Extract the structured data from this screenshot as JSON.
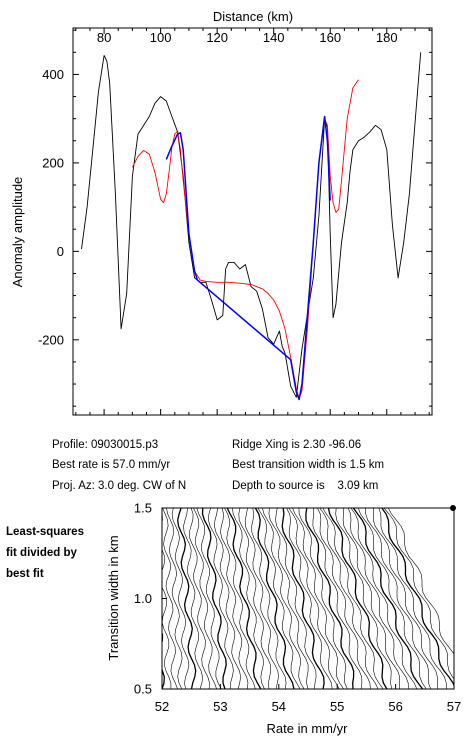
{
  "chart_data": [
    {
      "type": "line",
      "xlabel": "Distance (km)",
      "ylabel": "Anomaly amplitude",
      "x_ticks": [
        80,
        100,
        120,
        140,
        160,
        180
      ],
      "y_ticks": [
        400,
        200,
        0,
        -200
      ],
      "xlim": [
        69,
        196
      ],
      "ylim": [
        -370,
        505
      ],
      "series": [
        {
          "color": "#000000",
          "x": [
            72,
            74,
            76,
            78,
            80,
            81,
            82,
            84,
            85,
            86,
            88,
            90,
            92,
            94,
            96,
            98,
            100,
            102,
            104,
            106,
            108,
            110,
            112,
            114,
            116,
            118,
            120,
            122,
            123,
            124,
            126,
            128,
            130,
            132,
            134,
            136,
            138,
            140,
            142,
            143,
            144,
            146,
            148,
            150,
            152,
            154,
            156,
            158,
            159,
            160,
            161,
            162,
            164,
            166,
            167,
            168,
            170,
            172,
            174,
            176,
            178,
            180,
            182,
            184,
            186,
            188,
            190,
            192
          ],
          "y": [
            5,
            100,
            230,
            360,
            443,
            430,
            380,
            130,
            -20,
            -175,
            -95,
            170,
            265,
            285,
            305,
            335,
            350,
            340,
            305,
            270,
            170,
            20,
            -60,
            -70,
            -70,
            -110,
            -155,
            -145,
            -40,
            -25,
            -25,
            -40,
            -30,
            -80,
            -90,
            -130,
            -195,
            -210,
            -180,
            -215,
            -230,
            -305,
            -330,
            -220,
            -140,
            -60,
            80,
            300,
            280,
            40,
            -150,
            -120,
            20,
            110,
            180,
            230,
            250,
            258,
            270,
            285,
            275,
            230,
            60,
            -60,
            20,
            130,
            290,
            450
          ]
        },
        {
          "color": "#ff0000",
          "x": [
            90,
            92,
            94,
            96,
            98,
            100,
            101,
            102,
            103,
            104,
            105,
            106,
            107,
            108,
            110,
            112,
            114,
            116,
            120,
            124,
            128,
            132,
            136,
            138,
            140,
            142,
            144,
            146,
            148,
            149,
            150,
            152,
            154,
            156,
            158,
            159,
            160,
            161,
            162,
            163,
            164,
            166,
            168,
            170
          ],
          "y": [
            190,
            215,
            228,
            220,
            178,
            118,
            110,
            130,
            180,
            235,
            265,
            272,
            230,
            160,
            40,
            -45,
            -65,
            -68,
            -70,
            -70,
            -72,
            -75,
            -85,
            -95,
            -110,
            -135,
            -175,
            -240,
            -310,
            -332,
            -315,
            -170,
            20,
            200,
            300,
            285,
            170,
            110,
            88,
            95,
            160,
            300,
            370,
            388
          ]
        },
        {
          "color": "#0000ff",
          "x": [
            102,
            104,
            106,
            107,
            108,
            110,
            112,
            113,
            146,
            148,
            149,
            150,
            152,
            154,
            156,
            158,
            159,
            160
          ],
          "y": [
            208,
            238,
            265,
            268,
            230,
            40,
            -45,
            -65,
            -245,
            -318,
            -335,
            -300,
            -140,
            20,
            200,
            305,
            250,
            115
          ]
        }
      ]
    },
    {
      "type": "contour",
      "xlabel": "Rate in mm/yr",
      "ylabel": "Transition width in km",
      "x_ticks": [
        "52",
        "53",
        "54",
        "55",
        "56",
        "57"
      ],
      "y_ticks": [
        "1.5",
        "1.0",
        "0.5"
      ],
      "xlim": [
        52,
        57
      ],
      "ylim": [
        0.5,
        1.5
      ],
      "best_fit_marker": {
        "rate": 57.0,
        "width": 1.5
      }
    }
  ],
  "info": {
    "profile": "Profile: 09030015.p3",
    "best_rate": "Best rate is 57.0 mm/yr",
    "proj_az": "Proj. Az: 3.0 deg. CW of N",
    "ridge_xing": "Ridge Xing is 2.30 -96.06",
    "transition": "Best transition width is 1.5 km",
    "depth": "Depth to source is    3.09 km"
  },
  "side_note": [
    "Least-squares",
    "fit divided by",
    "best fit"
  ]
}
